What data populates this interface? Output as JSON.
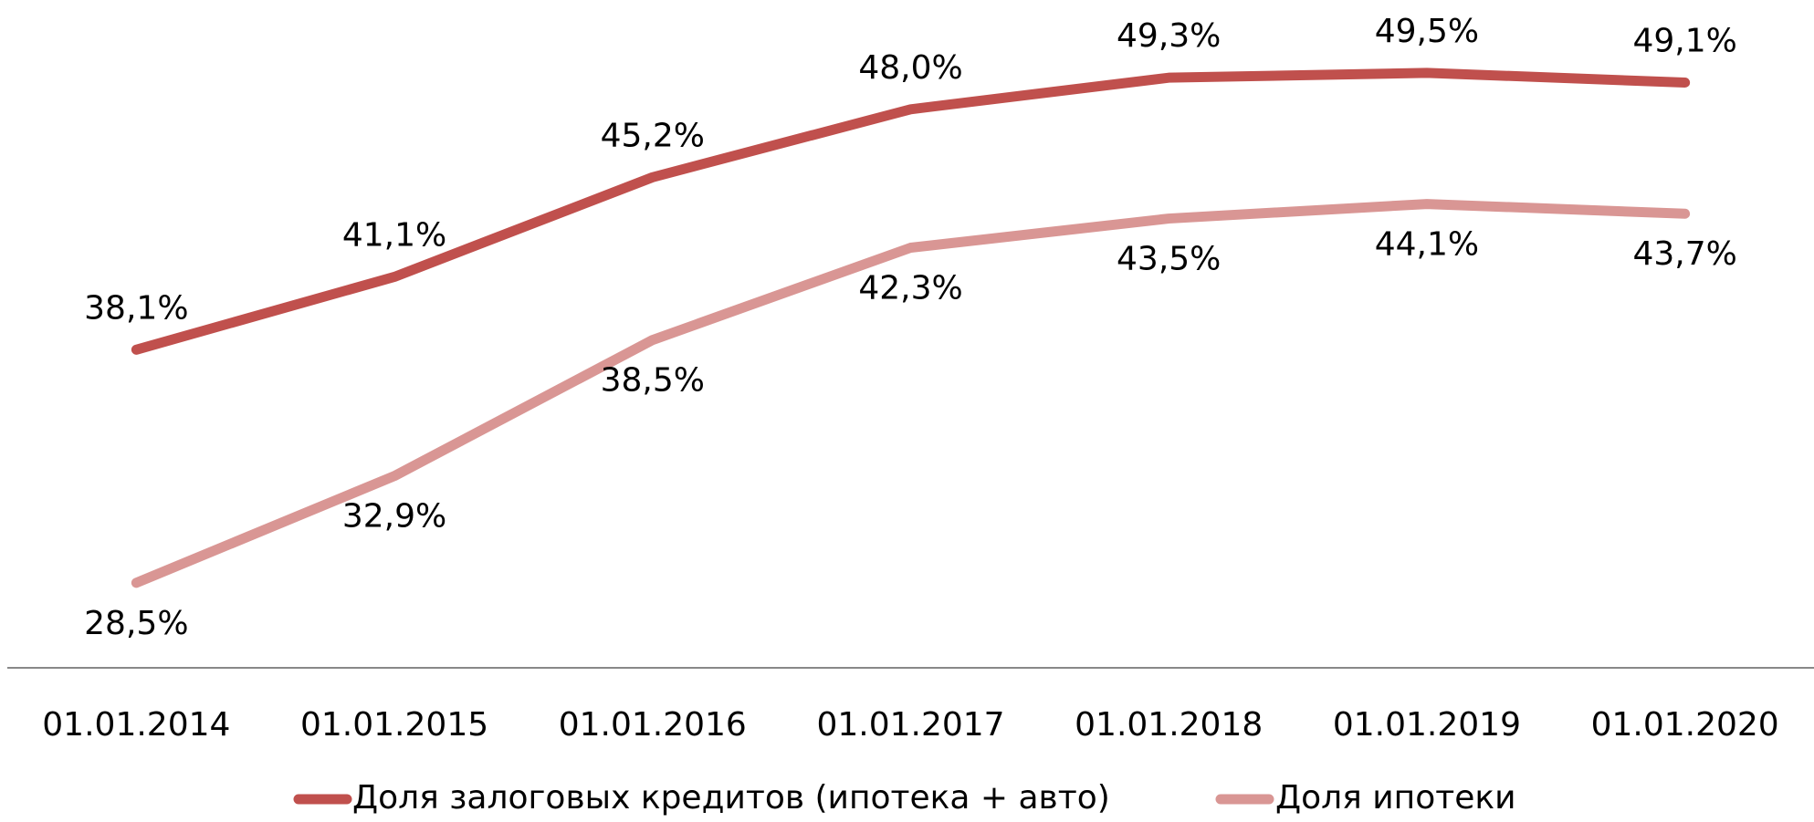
{
  "chart_data": {
    "type": "line",
    "categories": [
      "01.01.2014",
      "01.01.2015",
      "01.01.2016",
      "01.01.2017",
      "01.01.2018",
      "01.01.2019",
      "01.01.2020"
    ],
    "series": [
      {
        "name": "Доля залоговых кредитов (ипотека + авто)",
        "color": "#c0504d",
        "values": [
          38.1,
          41.1,
          45.2,
          48.0,
          49.3,
          49.5,
          49.1
        ],
        "value_labels": [
          "38,1%",
          "41,1%",
          "45,2%",
          "48,0%",
          "49,3%",
          "49,5%",
          "49,1%"
        ]
      },
      {
        "name": "Доля ипотеки",
        "color": "#d99694",
        "values": [
          28.5,
          32.9,
          38.5,
          42.3,
          43.5,
          44.1,
          43.7
        ],
        "value_labels": [
          "28,5%",
          "32,9%",
          "38,5%",
          "42,3%",
          "43,5%",
          "44,1%",
          "43,7%"
        ]
      }
    ],
    "ylim": [
      25,
      52.5
    ],
    "legend": "bottom"
  }
}
